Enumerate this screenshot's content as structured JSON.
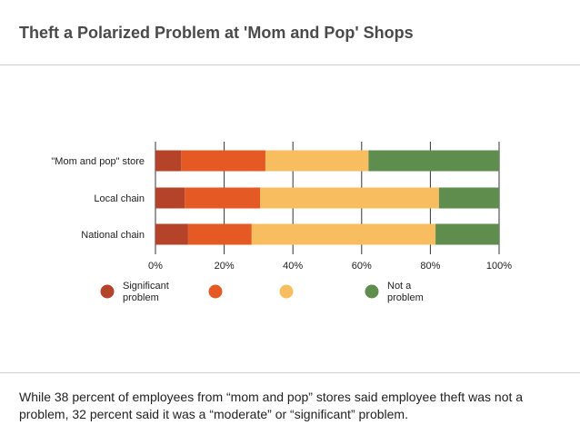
{
  "header": {
    "title": "Theft a Polarized Problem at 'Mom and Pop' Shops"
  },
  "footer": {
    "caption": "While 38 percent of employees from “mom and pop” stores said employee theft was not a problem, 32 percent said it was a “moderate” or “significant” problem."
  },
  "chart_data": {
    "type": "bar",
    "orientation": "horizontal",
    "stacked": true,
    "percent_stacked": true,
    "categories": [
      "\"Mom and pop\" store",
      "Local chain",
      "National chain"
    ],
    "series": [
      {
        "name": "Significant problem",
        "color": "#b5432a",
        "values": [
          7.5,
          8.5,
          9.5
        ]
      },
      {
        "name": "",
        "color": "#e55a24",
        "values": [
          24.5,
          22.0,
          18.5
        ]
      },
      {
        "name": "",
        "color": "#f7bd5f",
        "values": [
          30.0,
          52.0,
          53.5
        ]
      },
      {
        "name": "Not a problem",
        "color": "#5f8d4e",
        "values": [
          38.0,
          17.5,
          18.5
        ]
      }
    ],
    "x_ticks": [
      "0%",
      "20%",
      "40%",
      "60%",
      "80%",
      "100%"
    ],
    "xlim": [
      0,
      100
    ],
    "legend_position": "bottom",
    "legend_labels": [
      [
        "Significant",
        "problem"
      ],
      [],
      [],
      [
        "Not a",
        "problem"
      ]
    ]
  }
}
